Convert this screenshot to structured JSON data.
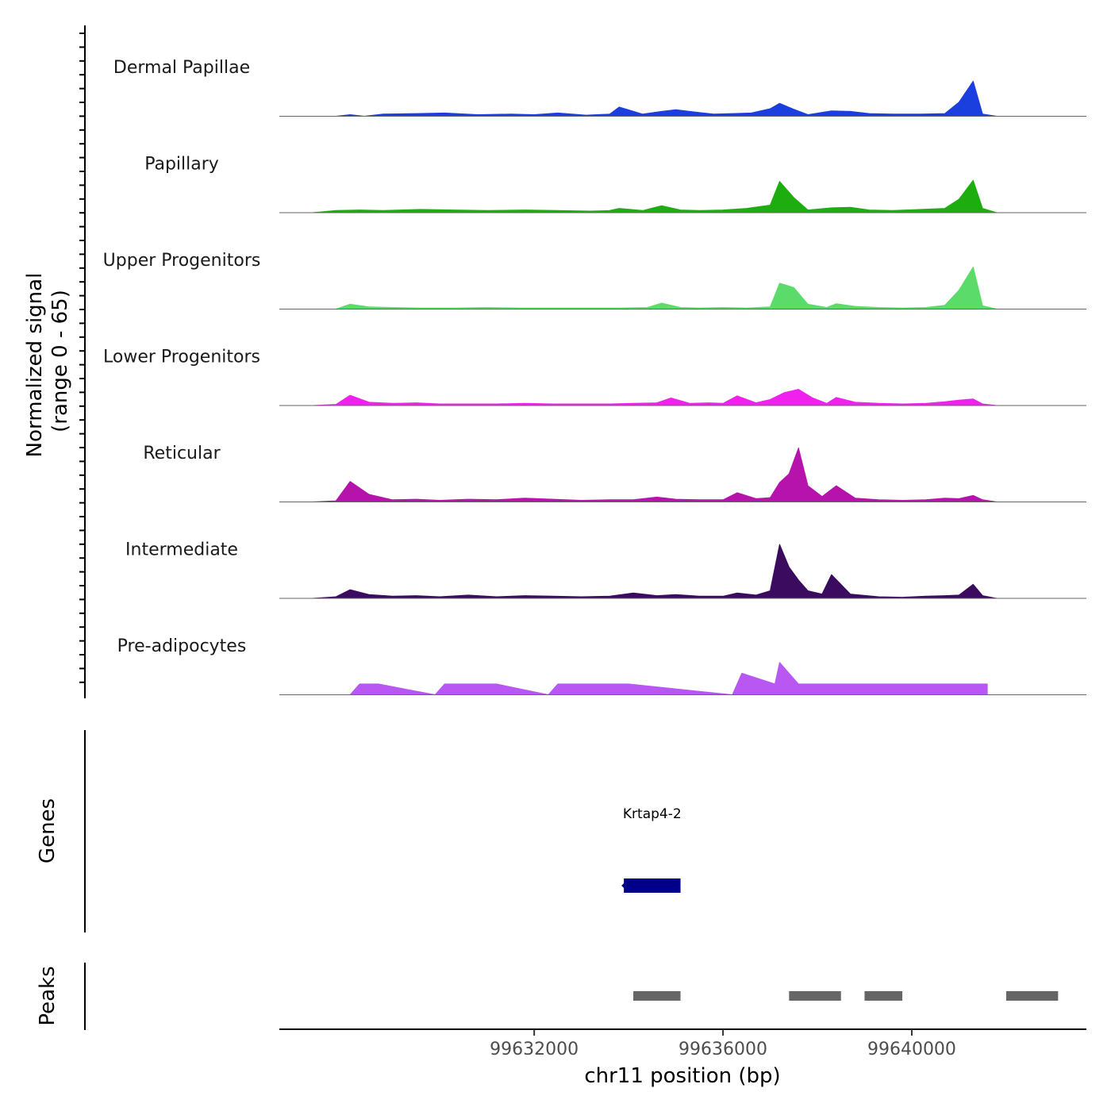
{
  "chart_data": {
    "type": "area",
    "title": "",
    "chromosome": "chr11",
    "xlabel": "chr11 position (bp)",
    "ylabel_line1": "Normalized signal",
    "ylabel_line2": "(range 0 - 65)",
    "xlim": [
      99626600,
      99643700
    ],
    "ylim": [
      0,
      65
    ],
    "x_ticks": [
      99632000,
      99636000,
      99640000
    ],
    "x_tick_labels": [
      "99632000",
      "99636000",
      "99640000"
    ],
    "track_order": [
      "Dermal Papillae",
      "Papillary",
      "Upper Progenitors",
      "Lower Progenitors",
      "Reticular",
      "Intermediate",
      "Pre-adipocytes"
    ],
    "series": [
      {
        "name": "Dermal Papillae",
        "color": "#1a3fde",
        "x": [
          99627800,
          99628100,
          99628400,
          99628800,
          99629500,
          99630100,
          99630800,
          99631500,
          99632000,
          99632500,
          99633100,
          99633600,
          99633800,
          99634300,
          99634700,
          99635000,
          99635400,
          99635800,
          99636200,
          99636600,
          99637000,
          99637200,
          99637500,
          99637800,
          99638300,
          99638700,
          99639100,
          99639600,
          99640200,
          99640700,
          99641000,
          99641300,
          99641500,
          99641800
        ],
        "values": [
          0,
          3,
          0,
          4,
          5,
          6,
          3,
          4,
          3,
          6,
          2,
          4,
          17,
          4,
          9,
          12,
          8,
          4,
          5,
          6,
          14,
          24,
          13,
          3,
          10,
          9,
          5,
          4,
          4,
          5,
          26,
          65,
          4,
          0
        ]
      },
      {
        "name": "Papillary",
        "color": "#1ead0f",
        "x": [
          99627300,
          99627800,
          99628300,
          99628800,
          99629600,
          99630300,
          99631000,
          99631800,
          99632500,
          99633200,
          99633600,
          99633800,
          99634300,
          99634700,
          99635100,
          99635500,
          99636000,
          99636500,
          99637000,
          99637200,
          99637500,
          99637800,
          99638300,
          99638700,
          99639100,
          99639600,
          99640200,
          99640700,
          99641000,
          99641300,
          99641500,
          99641800
        ],
        "values": [
          0,
          4,
          5,
          4,
          6,
          5,
          4,
          5,
          4,
          3,
          4,
          8,
          4,
          13,
          5,
          4,
          5,
          8,
          14,
          58,
          28,
          5,
          9,
          10,
          5,
          4,
          6,
          8,
          25,
          60,
          8,
          0
        ]
      },
      {
        "name": "Upper Progenitors",
        "color": "#5bdb6a",
        "x": [
          99627800,
          99628100,
          99628500,
          99629000,
          99629600,
          99630300,
          99631000,
          99631700,
          99632400,
          99633100,
          99633800,
          99634400,
          99634700,
          99635100,
          99635500,
          99636000,
          99636500,
          99637000,
          99637200,
          99637500,
          99637800,
          99638200,
          99638400,
          99638800,
          99639300,
          99639800,
          99640300,
          99640700,
          99641000,
          99641300,
          99641500,
          99641800
        ],
        "values": [
          0,
          9,
          4,
          3,
          2,
          2,
          3,
          2,
          2,
          2,
          2,
          3,
          11,
          3,
          2,
          3,
          2,
          4,
          48,
          40,
          9,
          3,
          10,
          5,
          3,
          2,
          3,
          7,
          35,
          78,
          6,
          0
        ]
      },
      {
        "name": "Lower Progenitors",
        "color": "#f020ee",
        "x": [
          99627300,
          99627800,
          99628100,
          99628500,
          99629000,
          99629500,
          99630000,
          99630600,
          99631200,
          99631800,
          99632400,
          99633000,
          99633600,
          99634100,
          99634600,
          99634900,
          99635300,
          99635700,
          99636000,
          99636300,
          99636700,
          99637000,
          99637300,
          99637600,
          99637900,
          99638200,
          99638400,
          99638800,
          99639300,
          99639800,
          99640300,
          99640700,
          99641000,
          99641300,
          99641500,
          99641800
        ],
        "values": [
          0,
          2,
          19,
          6,
          4,
          5,
          3,
          3,
          3,
          4,
          3,
          3,
          3,
          4,
          5,
          14,
          4,
          5,
          4,
          18,
          5,
          11,
          24,
          30,
          14,
          4,
          15,
          6,
          4,
          3,
          4,
          7,
          10,
          12,
          3,
          0
        ]
      },
      {
        "name": "Reticular",
        "color": "#b612ac",
        "x": [
          99627300,
          99627800,
          99628100,
          99628500,
          99629000,
          99629500,
          99630000,
          99630600,
          99631200,
          99631800,
          99632400,
          99633000,
          99633600,
          99634100,
          99634600,
          99635000,
          99635500,
          99636000,
          99636300,
          99636700,
          99637000,
          99637200,
          99637400,
          99637600,
          99637800,
          99638100,
          99638400,
          99638800,
          99639300,
          99639800,
          99640300,
          99640700,
          99641000,
          99641300,
          99641500,
          99641800
        ],
        "values": [
          0,
          2,
          38,
          14,
          4,
          5,
          3,
          5,
          4,
          7,
          5,
          3,
          4,
          4,
          9,
          5,
          4,
          4,
          17,
          6,
          8,
          36,
          52,
          100,
          30,
          10,
          30,
          7,
          4,
          3,
          4,
          7,
          6,
          12,
          4,
          0
        ]
      },
      {
        "name": "Intermediate",
        "color": "#3a0b5e",
        "x": [
          99627300,
          99627800,
          99628100,
          99628500,
          99629000,
          99629500,
          99630000,
          99630600,
          99631200,
          99631800,
          99632400,
          99633000,
          99633600,
          99634100,
          99634600,
          99635000,
          99635500,
          99636000,
          99636300,
          99636700,
          99637000,
          99637200,
          99637400,
          99637600,
          99637800,
          99638100,
          99638300,
          99638700,
          99639300,
          99639800,
          99640300,
          99640700,
          99641000,
          99641300,
          99641500,
          99641800
        ],
        "values": [
          0,
          3,
          16,
          7,
          4,
          5,
          3,
          6,
          3,
          5,
          4,
          3,
          4,
          10,
          5,
          7,
          4,
          4,
          10,
          6,
          14,
          100,
          58,
          34,
          14,
          8,
          44,
          8,
          3,
          2,
          4,
          5,
          6,
          26,
          5,
          0
        ]
      },
      {
        "name": "Pre-adipocytes",
        "color": "#b857f2",
        "x": [
          99628100,
          99628300,
          99628500,
          99628700,
          99629900,
          99630100,
          99630500,
          99630900,
          99631200,
          99632300,
          99632500,
          99633800,
          99634000,
          99636200,
          99636400,
          99637100,
          99637200,
          99637400,
          99637600,
          99638200,
          99638400,
          99638600,
          99641000,
          99641200,
          99641400,
          99641600
        ],
        "values": [
          0,
          20,
          20,
          20,
          0,
          20,
          20,
          20,
          20,
          0,
          20,
          20,
          20,
          0,
          40,
          20,
          60,
          40,
          20,
          20,
          20,
          20,
          20,
          20,
          20,
          20
        ]
      }
    ],
    "genes_label": "Genes",
    "genes": [
      {
        "name": "Krtap4-2",
        "start": 99633900,
        "end": 99635100,
        "strand": "-",
        "color": "#00008b"
      }
    ],
    "peaks_label": "Peaks",
    "peaks": [
      {
        "start": 99634100,
        "end": 99635100
      },
      {
        "start": 99637400,
        "end": 99638500
      },
      {
        "start": 99639000,
        "end": 99639800
      },
      {
        "start": 99642000,
        "end": 99643100
      }
    ],
    "peak_color": "#666666",
    "legend": "none"
  }
}
